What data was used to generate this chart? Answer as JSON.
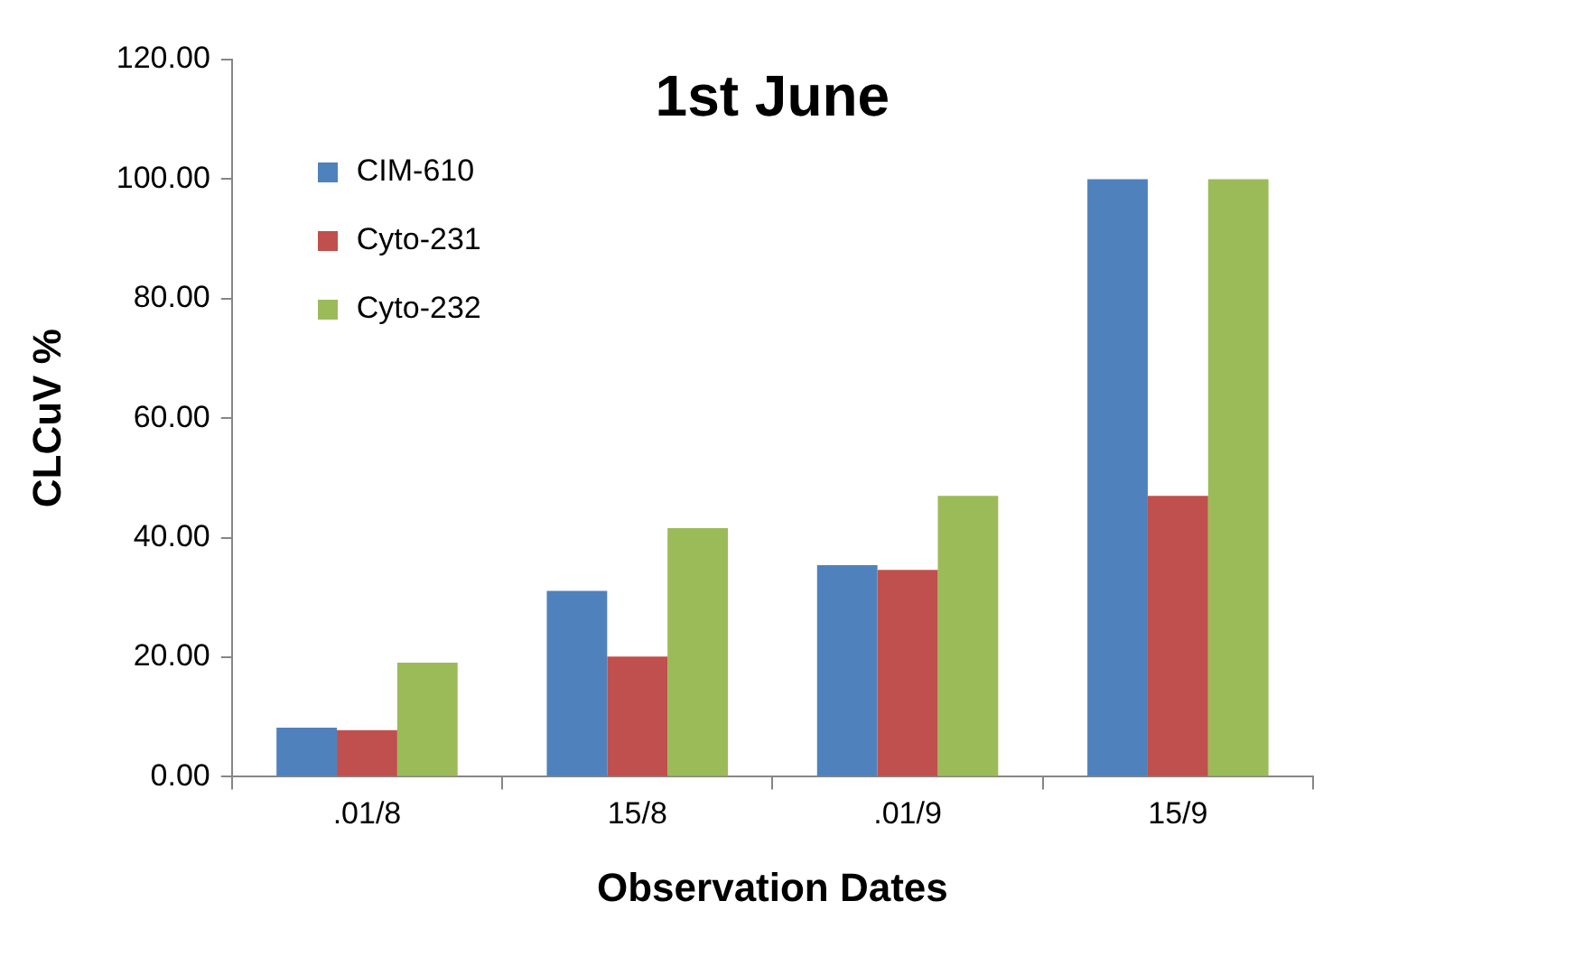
{
  "chart_data": {
    "type": "bar",
    "title": "1st June",
    "xlabel": "Observation Dates",
    "ylabel": "CLCuV %",
    "categories": [
      ".01/8",
      "15/8",
      ".01/9",
      "15/9"
    ],
    "series": [
      {
        "name": "CIM-610",
        "color": "#4f81bd",
        "values": [
          8.2,
          31.1,
          35.4,
          100
        ]
      },
      {
        "name": "Cyto-231",
        "color": "#c0504d",
        "values": [
          7.8,
          20.1,
          34.6,
          47.0
        ]
      },
      {
        "name": "Cyto-232",
        "color": "#9bbb59",
        "values": [
          19.1,
          41.6,
          47.0,
          100
        ]
      }
    ],
    "ylim": [
      0,
      120
    ],
    "yticks": [
      {
        "value": 0,
        "label": "0.00"
      },
      {
        "value": 20,
        "label": "20.00"
      },
      {
        "value": 40,
        "label": "40.00"
      },
      {
        "value": 60,
        "label": "60.00"
      },
      {
        "value": 80,
        "label": "80.00"
      },
      {
        "value": 100,
        "label": "100.00"
      },
      {
        "value": 120,
        "label": "120.00"
      }
    ],
    "grid": false,
    "legend": "top left"
  }
}
